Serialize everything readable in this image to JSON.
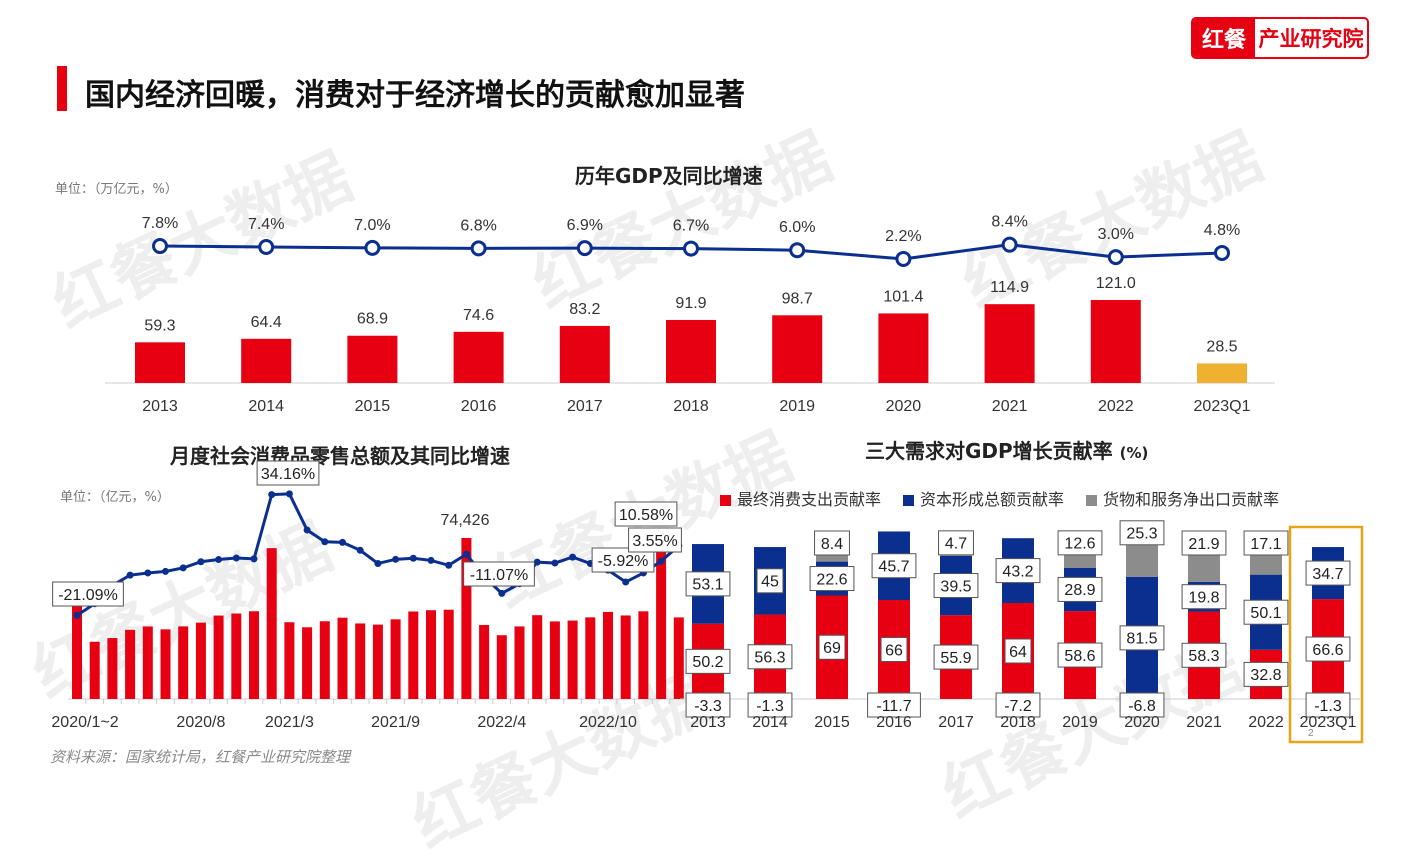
{
  "header": {
    "title": "国内经济回暖，消费对于经济增长的贡献愈加显著",
    "logo_left": "红餐",
    "logo_right": "产业研究院"
  },
  "watermark": "红餐大数据",
  "source": "资料来源：国家统计局，红餐产业研究院整理",
  "colors": {
    "red": "#e60012",
    "blue": "#0b2f8f",
    "grey": "#8c8c8c",
    "gold": "#f0b030",
    "highlight": "#e8a317"
  },
  "chart_data": [
    {
      "type": "bar+line",
      "title": "历年GDP及同比增速",
      "unit": "单位：（万亿元，%）",
      "categories": [
        "2013",
        "2014",
        "2015",
        "2016",
        "2017",
        "2018",
        "2019",
        "2020",
        "2021",
        "2022",
        "2023Q1"
      ],
      "series": [
        {
          "name": "GDP",
          "values": [
            59.3,
            64.4,
            68.9,
            74.6,
            83.2,
            91.9,
            98.7,
            101.4,
            114.9,
            121.0,
            28.5
          ],
          "labels": [
            "59.3",
            "64.4",
            "68.9",
            "74.6",
            "83.2",
            "91.9",
            "98.7",
            "101.4",
            "114.9",
            "121.0",
            "28.5"
          ]
        },
        {
          "name": "同比增速",
          "values": [
            7.8,
            7.4,
            7.0,
            6.8,
            6.9,
            6.7,
            6.0,
            2.2,
            8.4,
            3.0,
            4.8
          ],
          "labels": [
            "7.8%",
            "7.4%",
            "7.0%",
            "6.8%",
            "6.9%",
            "6.7%",
            "6.0%",
            "2.2%",
            "8.4%",
            "3.0%",
            "4.8%"
          ]
        }
      ]
    },
    {
      "type": "bar+line",
      "title": "月度社会消费品零售总额及其同比增速",
      "unit": "单位：（亿元，%）",
      "tick_labels": [
        "2020/1~2",
        "2020/8",
        "2021/3",
        "2021/9",
        "2022/4",
        "2022/10"
      ],
      "tick_index": [
        0,
        7,
        12,
        18,
        24,
        30
      ],
      "series": [
        {
          "name": "社会消费品零售总额",
          "values": [
            52130,
            26450,
            28178,
            31973,
            33526,
            32203,
            33571,
            35295,
            38576,
            39514,
            40566,
            69737,
            35484,
            33153,
            35945,
            37586,
            34925,
            34395,
            36833,
            40454,
            41043,
            41269,
            74426,
            34233,
            29483,
            33547,
            38742,
            35870,
            36258,
            37745,
            40271,
            38615,
            40542,
            77067,
            37715
          ]
        },
        {
          "name": "同比增速",
          "values": [
            -21.09,
            -15.8,
            -7.5,
            -2.8,
            -1.8,
            -1.1,
            0.5,
            3.3,
            4.3,
            5.0,
            4.6,
            33.8,
            34.16,
            17.7,
            12.4,
            12.1,
            8.5,
            2.5,
            4.4,
            4.9,
            3.9,
            1.7,
            6.7,
            -3.5,
            -11.07,
            -6.7,
            3.1,
            2.7,
            5.4,
            2.5,
            -0.5,
            -5.92,
            -1.8,
            3.55,
            10.58
          ]
        }
      ],
      "annotations": [
        {
          "index": 0,
          "text": "-21.09%"
        },
        {
          "index": 12,
          "text": "34.16%"
        },
        {
          "index": 22,
          "text": "74,426"
        },
        {
          "index": 24,
          "text": "-11.07%"
        },
        {
          "index": 31,
          "text": "-5.92%"
        },
        {
          "index": 33,
          "text": "3.55%"
        },
        {
          "index": 34,
          "text": "10.58%"
        }
      ]
    },
    {
      "type": "stacked-bar",
      "title": "三大需求对GDP增长贡献率",
      "title_unit": "(%)",
      "categories": [
        "2013",
        "2014",
        "2015",
        "2016",
        "2017",
        "2018",
        "2019",
        "2020",
        "2021",
        "2022",
        "2023Q1"
      ],
      "series": [
        {
          "name": "最终消费支出贡献率",
          "values": [
            50.2,
            56.3,
            69.0,
            66.0,
            55.9,
            64.0,
            58.6,
            -6.8,
            58.3,
            32.8,
            66.6
          ]
        },
        {
          "name": "资本形成总额贡献率",
          "values": [
            53.1,
            45,
            22.6,
            45.7,
            39.5,
            43.2,
            28.9,
            81.5,
            19.8,
            50.1,
            34.7
          ]
        },
        {
          "name": "货物和服务净出口贡献率",
          "values": [
            -3.3,
            -1.3,
            8.4,
            -11.7,
            4.7,
            -7.2,
            12.6,
            25.3,
            21.9,
            17.1,
            -1.3
          ]
        }
      ],
      "highlight": "2023Q1",
      "page_number": "2"
    }
  ]
}
